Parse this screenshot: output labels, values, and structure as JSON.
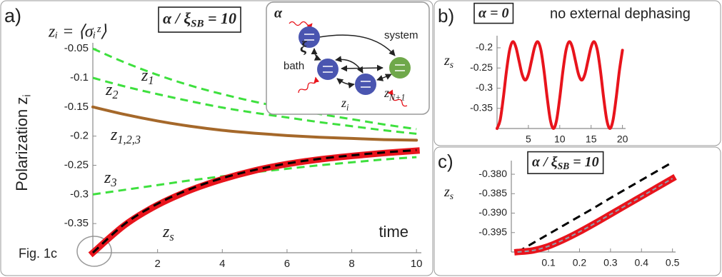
{
  "chart_data": [
    {
      "type": "line",
      "panel_label": "a)",
      "formula": "zᵢ = ⟨σᵢᶻ⟩",
      "parameter": "α / ξSB = 10",
      "y_label": "Polarization  zi",
      "x_label": "time",
      "note": "Fig. 1c",
      "inset": {
        "alpha": "α",
        "xi": "ξ",
        "system": "system",
        "bath": "bath",
        "z_top": "zN+1",
        "z_i": "zi"
      },
      "xlim": [
        0,
        10.15
      ],
      "ylim": [
        -0.4,
        -0.04
      ],
      "xticks": [
        2,
        4,
        6,
        8,
        10
      ],
      "yticks": [
        -0.35,
        -0.3,
        -0.25,
        -0.2,
        -0.15,
        -0.1,
        -0.05
      ],
      "x": [
        0,
        1,
        2,
        3,
        4,
        5,
        6,
        7,
        8,
        9,
        10
      ],
      "series": [
        {
          "name": "z1",
          "color": "#3ee03e",
          "style": "dashed",
          "values": [
            -0.05,
            -0.074,
            -0.095,
            -0.113,
            -0.128,
            -0.141,
            -0.152,
            -0.162,
            -0.171,
            -0.18,
            -0.188
          ]
        },
        {
          "name": "z2",
          "color": "#3ee03e",
          "style": "dashed",
          "values": [
            -0.1,
            -0.115,
            -0.128,
            -0.14,
            -0.151,
            -0.16,
            -0.168,
            -0.176,
            -0.183,
            -0.19,
            -0.196
          ]
        },
        {
          "name": "z1,2,3",
          "color": "#a5682a",
          "style": "solid",
          "values": [
            -0.15,
            -0.163,
            -0.174,
            -0.183,
            -0.19,
            -0.195,
            -0.199,
            -0.202,
            -0.204,
            -0.206,
            -0.207
          ]
        },
        {
          "name": "z3",
          "color": "#3ee03e",
          "style": "dashed",
          "values": [
            -0.3,
            -0.292,
            -0.284,
            -0.276,
            -0.269,
            -0.262,
            -0.256,
            -0.25,
            -0.245,
            -0.24,
            -0.236
          ]
        },
        {
          "name": "zs",
          "color": "#e8141c",
          "style": "thick",
          "values": [
            -0.4,
            -0.352,
            -0.318,
            -0.293,
            -0.274,
            -0.259,
            -0.248,
            -0.24,
            -0.234,
            -0.229,
            -0.225
          ]
        },
        {
          "color": "#000000",
          "style": "dashed",
          "values": [
            -0.4,
            -0.35,
            -0.316,
            -0.291,
            -0.272,
            -0.258,
            -0.247,
            -0.239,
            -0.233,
            -0.228,
            -0.224
          ]
        }
      ]
    },
    {
      "type": "line",
      "panel_label": "b)",
      "parameter": "α = 0",
      "note": "no external dephasing",
      "y_label": "zs",
      "xlim": [
        0,
        20.5
      ],
      "ylim": [
        -0.4,
        -0.17
      ],
      "xticks": [
        5,
        10,
        15,
        20
      ],
      "yticks": [
        -0.35,
        -0.3,
        -0.25,
        -0.2
      ],
      "x": [
        0,
        0.5,
        1,
        1.5,
        2,
        2.5,
        3,
        3.5,
        4,
        4.5,
        5,
        5.5,
        6,
        6.5,
        7,
        7.5,
        8,
        8.5,
        9,
        9.5,
        10,
        10.5,
        11,
        11.5,
        12,
        12.5,
        13,
        13.5,
        14,
        14.5,
        15,
        15.5,
        16,
        16.5,
        17,
        17.5,
        18,
        18.5,
        19,
        19.5,
        20
      ],
      "series": [
        {
          "color": "#e8141c",
          "style": "solid",
          "values": [
            -0.4,
            -0.379,
            -0.324,
            -0.258,
            -0.206,
            -0.185,
            -0.198,
            -0.232,
            -0.266,
            -0.28,
            -0.266,
            -0.232,
            -0.198,
            -0.185,
            -0.206,
            -0.258,
            -0.324,
            -0.379,
            -0.4,
            -0.379,
            -0.324,
            -0.258,
            -0.206,
            -0.185,
            -0.198,
            -0.232,
            -0.266,
            -0.28,
            -0.266,
            -0.232,
            -0.198,
            -0.185,
            -0.206,
            -0.258,
            -0.324,
            -0.379,
            -0.4,
            -0.379,
            -0.324,
            -0.258,
            -0.206
          ]
        }
      ]
    },
    {
      "type": "line",
      "panel_label": "c)",
      "parameter": "α / ξSB = 10",
      "y_label": "zs",
      "xlim": [
        -0.02,
        0.51
      ],
      "ylim": [
        -0.4,
        -0.3765
      ],
      "xticks": [
        0.1,
        0.2,
        0.3,
        0.4,
        0.5
      ],
      "yticks": [
        {
          "value": -0.395,
          "label": "-0.395"
        },
        {
          "value": -0.39,
          "label": "-0.390"
        },
        {
          "value": -0.385,
          "label": "-0.385"
        },
        {
          "value": -0.38,
          "label": "-0.380"
        }
      ],
      "x": [
        0,
        0.05,
        0.1,
        0.15,
        0.2,
        0.25,
        0.3,
        0.35,
        0.4,
        0.45,
        0.5
      ],
      "series": [
        {
          "color": "#000000",
          "style": "dashed",
          "values": [
            -0.4,
            -0.3977,
            -0.3954,
            -0.3931,
            -0.3908,
            -0.3885,
            -0.3861,
            -0.3838,
            -0.3815,
            -0.3792,
            -0.3769
          ]
        },
        {
          "color": "#e8141c",
          "style": "thick",
          "values": [
            -0.4,
            -0.3996,
            -0.3985,
            -0.3968,
            -0.3948,
            -0.3926,
            -0.3903,
            -0.388,
            -0.3857,
            -0.3834,
            -0.3811
          ]
        },
        {
          "color": "#8fa3b0",
          "style": "thin-dashed",
          "values": [
            -0.4,
            -0.3996,
            -0.3985,
            -0.3968,
            -0.3948,
            -0.3926,
            -0.3903,
            -0.388,
            -0.3857,
            -0.3834,
            -0.3811
          ]
        }
      ]
    }
  ]
}
